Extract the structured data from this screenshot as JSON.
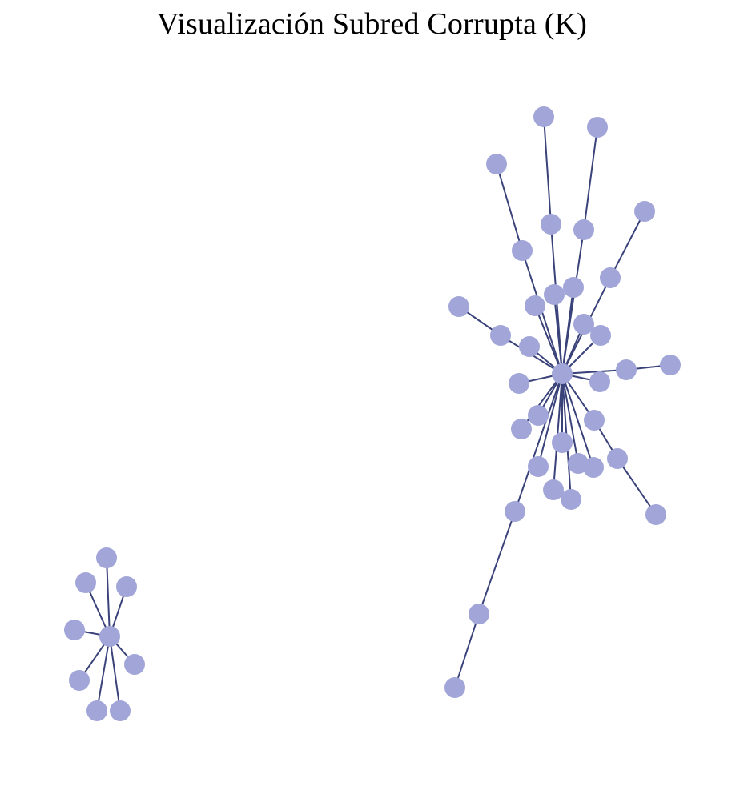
{
  "title": "Visualización Subred Corrupta (K)",
  "colors": {
    "node_fill": "#a1a5d8",
    "edge_stroke": "#3a427a",
    "background": "#ffffff"
  }
}
